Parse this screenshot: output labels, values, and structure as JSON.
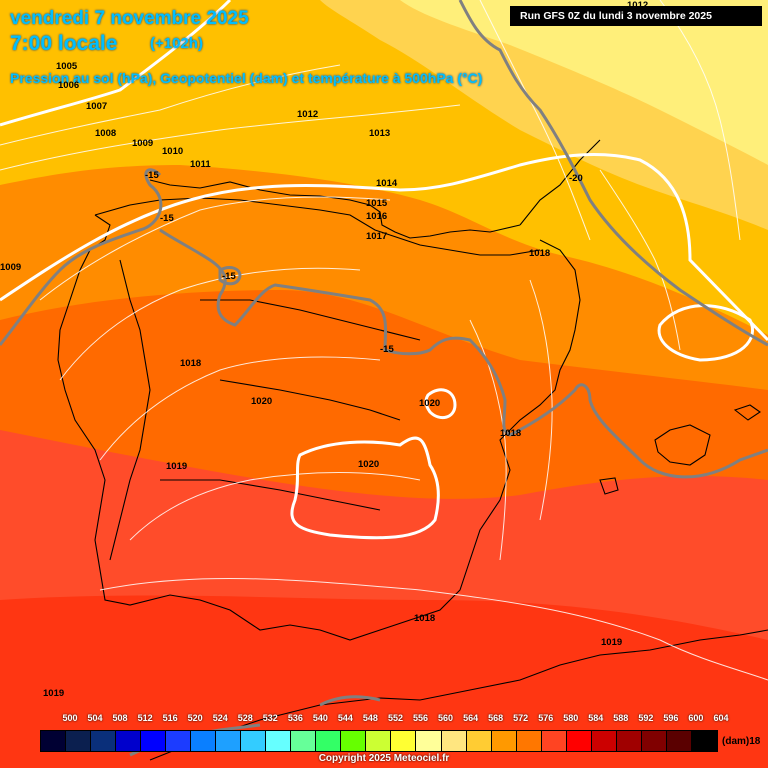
{
  "header": {
    "date": "vendredi 7 novembre 2025",
    "time": "7:00 locale",
    "lead": "(+102h)",
    "params": "Pression au sol (hPa), Geopotentiel (dam) et température à 500hPa (°C)"
  },
  "run_info": "Run GFS 0Z du lundi 3 novembre 2025",
  "pressure_labels": [
    "1005",
    "1006",
    "1007",
    "1008",
    "1009",
    "1010",
    "1011",
    "1012",
    "1013",
    "1014",
    "1015",
    "1016",
    "1017",
    "1018",
    "1018",
    "1018",
    "1019",
    "1020",
    "1020",
    "1020",
    "1018",
    "1019",
    "1018",
    "1019",
    "1009",
    "1012"
  ],
  "temperature_labels": [
    "-15",
    "-15",
    "-15",
    "-15",
    "-20"
  ],
  "colors": {
    "band_yellow_light": "#ffef7a",
    "band_yellow": "#ffd34f",
    "band_gold": "#ffc000",
    "band_orange": "#ff8c00",
    "band_orange_dark": "#ff6a00",
    "band_red_orange": "#ff4c2a",
    "band_red": "#ff3612",
    "geopotential_contour": "#ffffff",
    "temperature_contour": "#808080",
    "coastline": "#000000"
  },
  "scale": {
    "values": [
      "500",
      "504",
      "508",
      "512",
      "516",
      "520",
      "524",
      "528",
      "532",
      "536",
      "540",
      "544",
      "548",
      "552",
      "556",
      "560",
      "564",
      "568",
      "572",
      "576",
      "580",
      "584",
      "588",
      "592",
      "596",
      "600",
      "604"
    ],
    "colors": [
      "#000033",
      "#0b1f4f",
      "#0a2f7a",
      "#0000cc",
      "#0000ff",
      "#1c3cff",
      "#0a7fff",
      "#1ea0ff",
      "#33ccff",
      "#66ffff",
      "#66ff99",
      "#33ff66",
      "#66ff00",
      "#ccff33",
      "#ffff33",
      "#ffff99",
      "#ffe680",
      "#ffcc33",
      "#ff9900",
      "#ff7700",
      "#ff4422",
      "#ff0000",
      "#cc0000",
      "#a00000",
      "#800000",
      "#5a0000",
      "#000000"
    ],
    "unit": "(dam)18"
  },
  "copyright": "Copyright 2025 Meteociel.fr"
}
